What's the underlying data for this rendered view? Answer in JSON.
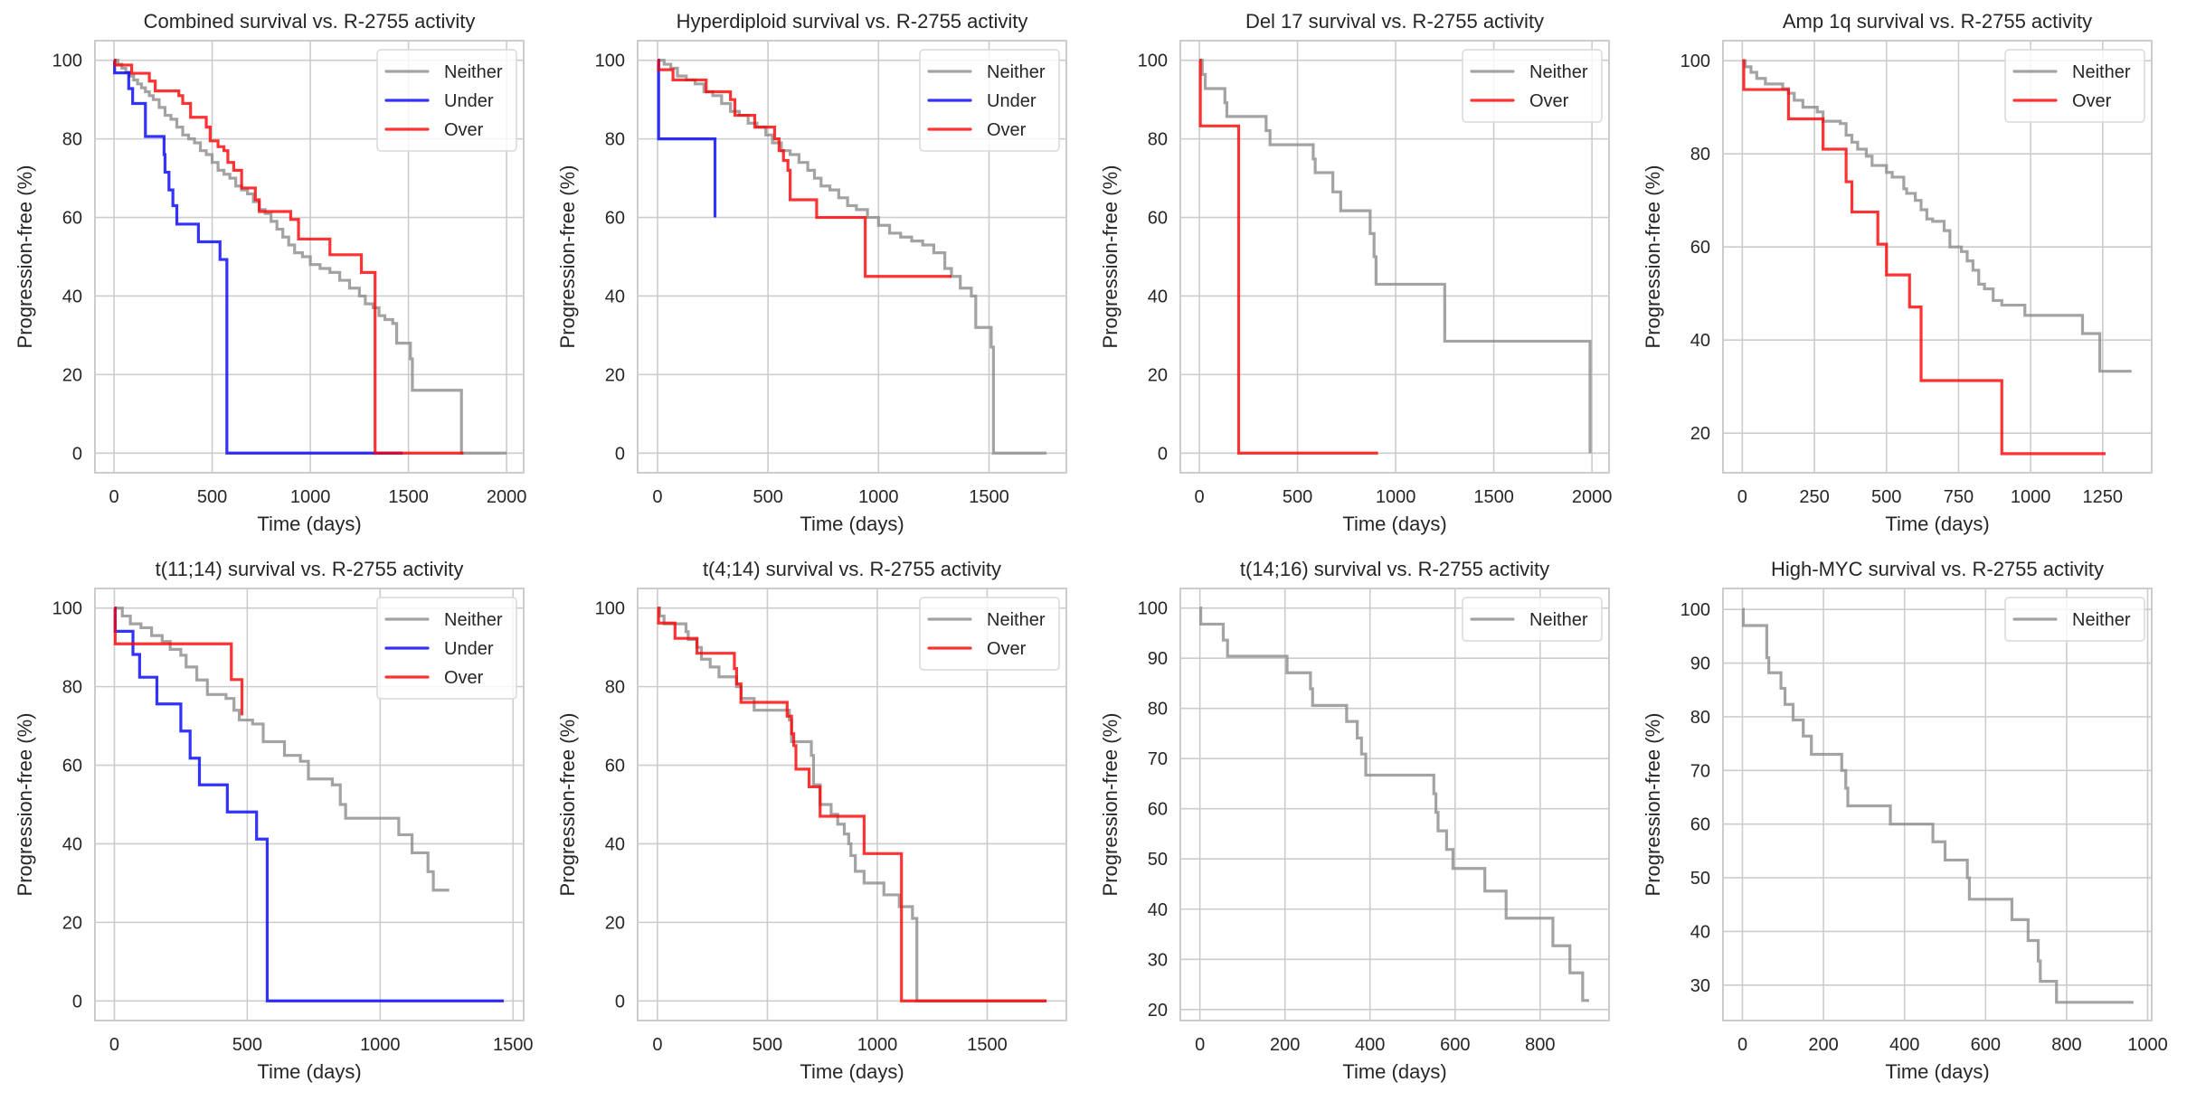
{
  "figure": {
    "layout": "2x4 grid of Kaplan-Meier style step plots"
  },
  "colors": {
    "Neither": "#8c8c8c",
    "Under": "#0000ff",
    "Over": "#ff0000",
    "grid": "#cccccc",
    "spine": "#cccccc",
    "text": "#262626"
  },
  "chart_data": [
    {
      "type": "line",
      "step": true,
      "title": "Combined survival vs. R-2755 activity",
      "xlabel": "Time (days)",
      "ylabel": "Progression-free (%)",
      "xlim": [
        -97,
        2087
      ],
      "ylim": [
        -5,
        105
      ],
      "xticks": [
        0,
        500,
        1000,
        1500,
        2000
      ],
      "yticks": [
        0,
        20,
        40,
        60,
        80,
        100
      ],
      "grid": true,
      "legend": "top-right",
      "series": [
        {
          "name": "Neither",
          "x": [
            0,
            20,
            40,
            60,
            80,
            100,
            120,
            140,
            160,
            180,
            200,
            230,
            260,
            290,
            320,
            350,
            380,
            410,
            440,
            470,
            500,
            530,
            560,
            590,
            620,
            650,
            680,
            710,
            740,
            770,
            800,
            830,
            860,
            890,
            920,
            960,
            1000,
            1050,
            1100,
            1150,
            1200,
            1250,
            1280,
            1320,
            1350,
            1380,
            1420,
            1440,
            1480,
            1510,
            1520,
            1600,
            1760,
            1770,
            2000
          ],
          "y": [
            100,
            99,
            98,
            97,
            96,
            95,
            94,
            93,
            92,
            91,
            90,
            88,
            86,
            85,
            83,
            81,
            80,
            79,
            77,
            76,
            74,
            72,
            71,
            70,
            68,
            67,
            66,
            64,
            62,
            61,
            59,
            57,
            55,
            53,
            51,
            50,
            48,
            47,
            46,
            44,
            42,
            40,
            38,
            37,
            35,
            34,
            33,
            28,
            28,
            24,
            16,
            16,
            16,
            0,
            0
          ]
        },
        {
          "name": "Under",
          "x": [
            0,
            3,
            70,
            75,
            95,
            155,
            160,
            250,
            255,
            260,
            280,
            300,
            320,
            430,
            540,
            570,
            575,
            1470
          ],
          "y": [
            100,
            96.8,
            96.8,
            92.8,
            89,
            89,
            80.6,
            80.6,
            76,
            71.5,
            67,
            63,
            58.3,
            53.8,
            49.3,
            49.3,
            0,
            0
          ]
        },
        {
          "name": "Over",
          "x": [
            0,
            5,
            80,
            90,
            160,
            180,
            210,
            290,
            330,
            350,
            390,
            440,
            470,
            490,
            530,
            560,
            580,
            610,
            650,
            690,
            720,
            740,
            780,
            900,
            940,
            1100,
            1260,
            1330,
            1780
          ],
          "y": [
            100,
            98.8,
            98.8,
            96.7,
            96.7,
            94.7,
            92.2,
            92.2,
            91,
            89,
            85.5,
            85.5,
            83,
            79.5,
            78,
            77,
            74,
            72,
            67.5,
            67.5,
            64.5,
            61.5,
            61.5,
            59.5,
            54.5,
            50.5,
            46,
            0,
            0
          ]
        }
      ]
    },
    {
      "type": "line",
      "step": true,
      "title": "Hyperdiploid survival vs. R-2755 activity",
      "xlabel": "Time (days)",
      "ylabel": "Progression-free (%)",
      "xlim": [
        -90,
        1850
      ],
      "ylim": [
        -5,
        105
      ],
      "xticks": [
        0,
        500,
        1000,
        1500
      ],
      "yticks": [
        0,
        20,
        40,
        60,
        80,
        100
      ],
      "grid": true,
      "legend": "top-right",
      "series": [
        {
          "name": "Neither",
          "x": [
            0,
            30,
            60,
            90,
            130,
            170,
            210,
            250,
            290,
            330,
            370,
            410,
            450,
            490,
            520,
            560,
            600,
            640,
            680,
            710,
            740,
            780,
            820,
            860,
            900,
            950,
            1000,
            1050,
            1100,
            1150,
            1200,
            1250,
            1300,
            1330,
            1370,
            1420,
            1440,
            1500,
            1510,
            1520,
            1760
          ],
          "y": [
            100,
            99,
            98,
            96,
            95,
            94,
            92,
            91,
            89,
            87,
            86,
            84,
            83,
            81,
            79,
            77,
            76,
            74,
            72,
            70,
            68,
            67,
            65,
            63,
            62,
            60,
            58,
            56,
            55,
            54,
            53,
            51,
            47,
            45,
            42,
            40,
            32,
            32,
            27,
            0,
            0
          ]
        },
        {
          "name": "Under",
          "x": [
            0,
            5,
            260
          ],
          "y": [
            100,
            80,
            60
          ]
        },
        {
          "name": "Over",
          "x": [
            0,
            5,
            70,
            220,
            330,
            350,
            440,
            530,
            550,
            570,
            590,
            600,
            720,
            940,
            1330
          ],
          "y": [
            100,
            97.6,
            95,
            92,
            90,
            86,
            83,
            80,
            77,
            74.5,
            72,
            64.5,
            60,
            45,
            45
          ]
        }
      ]
    },
    {
      "type": "line",
      "step": true,
      "title": "Del 17 survival vs. R-2755 activity",
      "xlabel": "Time (days)",
      "ylabel": "Progression-free (%)",
      "xlim": [
        -97,
        2087
      ],
      "ylim": [
        -5,
        105
      ],
      "xticks": [
        0,
        500,
        1000,
        1500,
        2000
      ],
      "yticks": [
        0,
        20,
        40,
        60,
        80,
        100
      ],
      "grid": true,
      "legend": "top-right",
      "series": [
        {
          "name": "Neither",
          "x": [
            0,
            15,
            30,
            130,
            140,
            340,
            360,
            580,
            590,
            680,
            720,
            870,
            890,
            900,
            1250,
            1990
          ],
          "y": [
            100,
            96.4,
            92.8,
            89.2,
            85.7,
            82.1,
            78.5,
            74.9,
            71.4,
            66.5,
            61.7,
            55.9,
            50,
            43,
            28.5,
            0
          ]
        },
        {
          "name": "Over",
          "x": [
            0,
            5,
            200,
            910
          ],
          "y": [
            100,
            83.3,
            0,
            0
          ]
        }
      ]
    },
    {
      "type": "line",
      "step": true,
      "title": "Amp 1q survival vs. R-2755 activity",
      "xlabel": "Time (days)",
      "ylabel": "Progression-free (%)",
      "xlim": [
        -67,
        1420
      ],
      "ylim": [
        11.5,
        104.3
      ],
      "xticks": [
        0,
        250,
        500,
        750,
        1000,
        1250
      ],
      "yticks": [
        20,
        40,
        60,
        80,
        100
      ],
      "grid": true,
      "legend": "top-right",
      "series": [
        {
          "name": "Neither",
          "x": [
            0,
            10,
            30,
            50,
            80,
            140,
            160,
            180,
            210,
            260,
            280,
            340,
            360,
            380,
            400,
            430,
            450,
            500,
            520,
            560,
            570,
            600,
            620,
            640,
            660,
            700,
            720,
            760,
            780,
            800,
            820,
            840,
            870,
            900,
            980,
            1180,
            1240,
            1350
          ],
          "y": [
            100,
            98.7,
            97.5,
            96.2,
            95,
            94,
            93,
            91.5,
            90,
            89,
            87,
            86.5,
            84,
            82.5,
            81,
            79.5,
            77.5,
            76,
            75,
            72.5,
            71.5,
            70,
            68,
            66,
            65.5,
            63.5,
            60,
            59,
            57,
            55,
            52,
            51,
            48.5,
            47.5,
            45.3,
            41.4,
            33.3,
            33.3
          ]
        },
        {
          "name": "Over",
          "x": [
            0,
            5,
            160,
            280,
            360,
            380,
            470,
            500,
            580,
            620,
            900,
            1260
          ],
          "y": [
            100,
            93.8,
            87.5,
            81,
            74,
            67.5,
            60.6,
            54,
            47.1,
            31.3,
            15.6,
            15.6
          ]
        }
      ]
    },
    {
      "type": "line",
      "step": true,
      "title": "t(11;14) survival vs. R-2755 activity",
      "xlabel": "Time (days)",
      "ylabel": "Progression-free (%)",
      "xlim": [
        -73,
        1540
      ],
      "ylim": [
        -5,
        105
      ],
      "xticks": [
        0,
        500,
        1000,
        1500
      ],
      "yticks": [
        0,
        20,
        40,
        60,
        80,
        100
      ],
      "grid": true,
      "legend": "top-right",
      "series": [
        {
          "name": "Neither",
          "x": [
            0,
            30,
            60,
            100,
            140,
            180,
            210,
            250,
            270,
            310,
            350,
            420,
            450,
            470,
            520,
            560,
            620,
            640,
            700,
            730,
            820,
            850,
            870,
            1070,
            1120,
            1180,
            1200,
            1260
          ],
          "y": [
            100,
            98,
            96,
            95,
            93,
            91.5,
            89.5,
            88,
            85,
            81.7,
            78,
            77,
            74,
            71.5,
            70.5,
            66,
            66,
            62.5,
            61,
            56.5,
            55,
            50,
            46.5,
            42.3,
            37.7,
            32.9,
            28.2,
            28.2
          ]
        },
        {
          "name": "Under",
          "x": [
            0,
            3,
            70,
            95,
            160,
            250,
            285,
            320,
            425,
            535,
            570,
            575,
            1465
          ],
          "y": [
            100,
            94.1,
            88.2,
            82.4,
            75.6,
            68.7,
            61.8,
            55,
            48.1,
            41.2,
            41.2,
            0,
            0
          ]
        },
        {
          "name": "Over",
          "x": [
            0,
            3,
            440,
            480
          ],
          "y": [
            100,
            90.9,
            81.8,
            72.7
          ]
        }
      ]
    },
    {
      "type": "line",
      "step": true,
      "title": "t(4;14) survival vs. R-2755 activity",
      "xlabel": "Time (days)",
      "ylabel": "Progression-free (%)",
      "xlim": [
        -90,
        1860
      ],
      "ylim": [
        -5,
        105
      ],
      "xticks": [
        0,
        500,
        1000,
        1500
      ],
      "yticks": [
        0,
        20,
        40,
        60,
        80,
        100
      ],
      "grid": true,
      "legend": "top-right",
      "series": [
        {
          "name": "Neither",
          "x": [
            0,
            10,
            30,
            130,
            140,
            180,
            200,
            240,
            280,
            360,
            380,
            440,
            590,
            600,
            610,
            700,
            710,
            740,
            790,
            820,
            850,
            870,
            880,
            900,
            940,
            1030,
            1100,
            1160,
            1170,
            1180,
            1770
          ],
          "y": [
            100,
            98,
            96,
            94,
            92,
            90,
            87,
            85,
            82.5,
            80,
            77,
            74,
            74,
            71.5,
            66,
            62.5,
            55,
            50,
            47.5,
            45,
            42.5,
            40,
            37,
            33,
            30,
            27,
            24,
            21,
            21,
            0,
            0
          ]
        },
        {
          "name": "Over",
          "x": [
            0,
            5,
            80,
            180,
            350,
            360,
            380,
            590,
            610,
            620,
            630,
            690,
            740,
            940,
            1100,
            1110,
            1770
          ],
          "y": [
            100,
            96.2,
            92.3,
            88.5,
            84.6,
            80.7,
            76,
            72.5,
            68,
            65,
            59,
            54.5,
            47,
            37.5,
            37.5,
            0,
            0
          ]
        }
      ]
    },
    {
      "type": "line",
      "step": true,
      "title": "t(14;16) survival vs. R-2755 activity",
      "xlabel": "Time (days)",
      "ylabel": "Progression-free (%)",
      "xlim": [
        -46,
        962
      ],
      "ylim": [
        17.8,
        103.9
      ],
      "xticks": [
        0,
        200,
        400,
        600,
        800
      ],
      "yticks": [
        20,
        30,
        40,
        50,
        60,
        70,
        80,
        90,
        100
      ],
      "grid": true,
      "legend": "top-right",
      "series": [
        {
          "name": "Neither",
          "x": [
            0,
            2,
            55,
            65,
            205,
            260,
            265,
            345,
            370,
            380,
            390,
            550,
            555,
            560,
            580,
            595,
            670,
            720,
            830,
            870,
            900,
            915
          ],
          "y": [
            100,
            96.8,
            93.6,
            90.4,
            87.1,
            83.9,
            80.6,
            77.4,
            74.1,
            70.9,
            66.7,
            63,
            59.3,
            55.6,
            51.9,
            48.1,
            43.6,
            38.2,
            32.7,
            27.3,
            21.8,
            21.8
          ]
        }
      ]
    },
    {
      "type": "line",
      "step": true,
      "title": "High-MYC survival vs. R-2755 activity",
      "xlabel": "Time (days)",
      "ylabel": "Progression-free (%)",
      "xlim": [
        -48,
        1010
      ],
      "ylim": [
        23.4,
        103.9
      ],
      "xticks": [
        0,
        200,
        400,
        600,
        800,
        1000
      ],
      "yticks": [
        30,
        40,
        50,
        60,
        70,
        80,
        90,
        100
      ],
      "grid": true,
      "legend": "top-right",
      "series": [
        {
          "name": "Neither",
          "x": [
            0,
            2,
            60,
            65,
            95,
            105,
            125,
            150,
            170,
            245,
            255,
            260,
            365,
            470,
            500,
            555,
            560,
            665,
            705,
            730,
            735,
            775,
            965
          ],
          "y": [
            100,
            97,
            91,
            88.2,
            85.3,
            82.3,
            79.4,
            76.4,
            73,
            70,
            66.7,
            63.4,
            60,
            56.7,
            53.3,
            50,
            46,
            42.2,
            38.3,
            34.5,
            30.7,
            26.8,
            26.8
          ]
        }
      ]
    }
  ]
}
